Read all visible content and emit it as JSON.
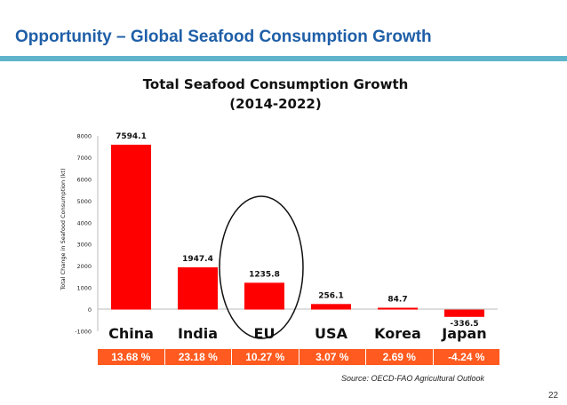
{
  "slide": {
    "title": "Opportunity – Global Seafood Consumption Growth",
    "source": "Source: OECD-FAO Agricultural Outlook",
    "page_number": "22"
  },
  "colors": {
    "title": "#1f5fa8",
    "rule": "#5fb4cb",
    "bar": "#ff0000",
    "pct_band": "#ff5a1f"
  },
  "chart_data": {
    "type": "bar",
    "title_lines": [
      "Total Seafood Consumption Growth",
      "(2014-2022)"
    ],
    "ylabel": "Total Change in Seafood Consumption (kt)",
    "xlabel": "",
    "categories": [
      "China",
      "India",
      "EU",
      "USA",
      "Korea",
      "Japan"
    ],
    "values": [
      7594.1,
      1947.4,
      1235.8,
      256.1,
      84.7,
      -336.5
    ],
    "value_labels": [
      "7594.1",
      "1947.4",
      "1235.8",
      "256.1",
      "84.7",
      "-336.5"
    ],
    "ylim": [
      -1000,
      8000
    ],
    "yticks": [
      -1000,
      0,
      1000,
      2000,
      3000,
      4000,
      5000,
      6000,
      7000,
      8000
    ],
    "grid": false,
    "highlight_category": "EU",
    "growth_percentages": [
      "13.68 %",
      "23.18 %",
      "10.27 %",
      "3.07 %",
      "2.69 %",
      "-4.24 %"
    ]
  }
}
